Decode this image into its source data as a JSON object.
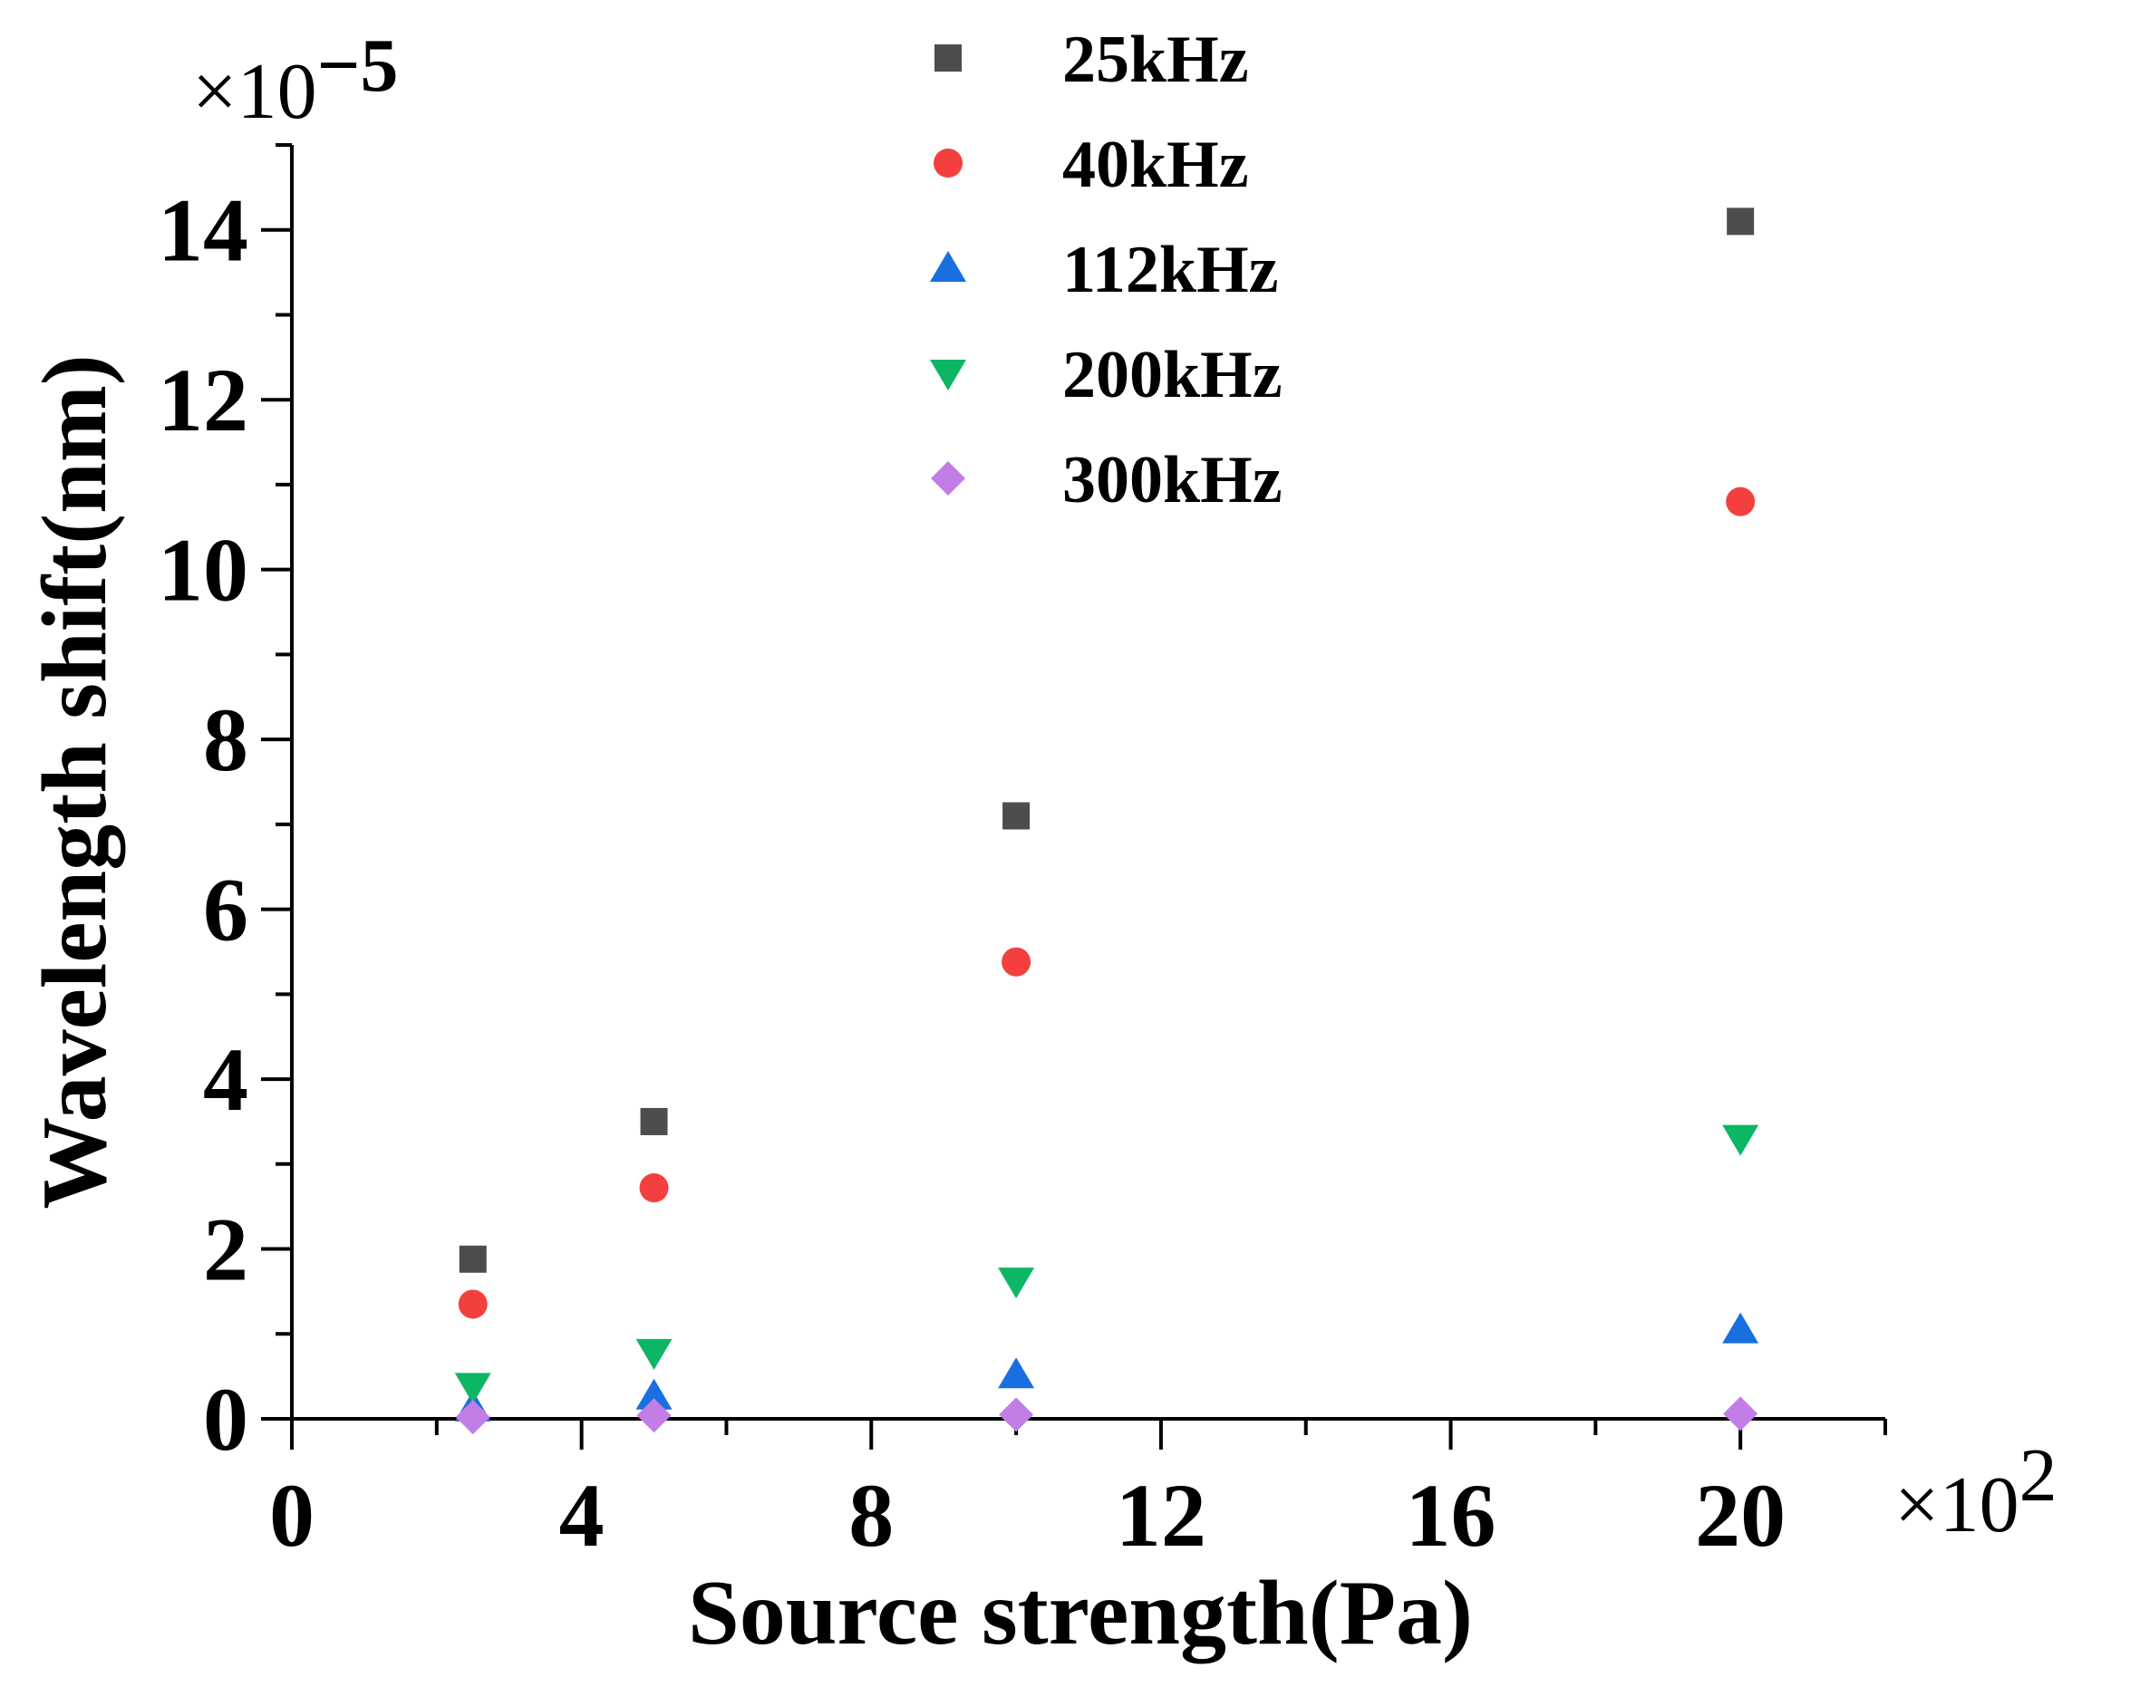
{
  "chart_data": {
    "type": "scatter",
    "title": "",
    "xlabel": "Source strength(Pa)",
    "ylabel": "Wavelength shift(nm)",
    "x_multiplier": {
      "base": "×10",
      "exponent": "2"
    },
    "y_multiplier": {
      "base": "×10",
      "exponent": "−5"
    },
    "xlim": [
      0,
      22
    ],
    "ylim": [
      0,
      15
    ],
    "xticks": [
      0,
      4,
      8,
      12,
      16,
      20
    ],
    "xtick_labels": [
      "0",
      "4",
      "8",
      "12",
      "16",
      "20"
    ],
    "yticks": [
      0,
      2,
      4,
      6,
      8,
      10,
      12,
      14
    ],
    "ytick_labels": [
      "0",
      "2",
      "4",
      "6",
      "8",
      "10",
      "12",
      "14"
    ],
    "legend_position": "top-center",
    "grid": false,
    "x": [
      2.5,
      5,
      10,
      20
    ],
    "series": [
      {
        "name": "25kHz",
        "marker": "square",
        "color": "#4d4d4d",
        "values": [
          1.88,
          3.5,
          7.1,
          14.1
        ]
      },
      {
        "name": "40kHz",
        "marker": "circle",
        "color": "#f43f3f",
        "values": [
          1.35,
          2.72,
          5.38,
          10.8
        ]
      },
      {
        "name": "112kHz",
        "marker": "triangle-up",
        "color": "#1a6fdf",
        "values": [
          0.13,
          0.27,
          0.52,
          1.05
        ]
      },
      {
        "name": "200kHz",
        "marker": "triangle-down",
        "color": "#0db665",
        "values": [
          0.38,
          0.78,
          1.62,
          3.3
        ]
      },
      {
        "name": "300kHz",
        "marker": "diamond",
        "color": "#c27ee6",
        "values": [
          0.02,
          0.04,
          0.05,
          0.06
        ]
      }
    ]
  }
}
